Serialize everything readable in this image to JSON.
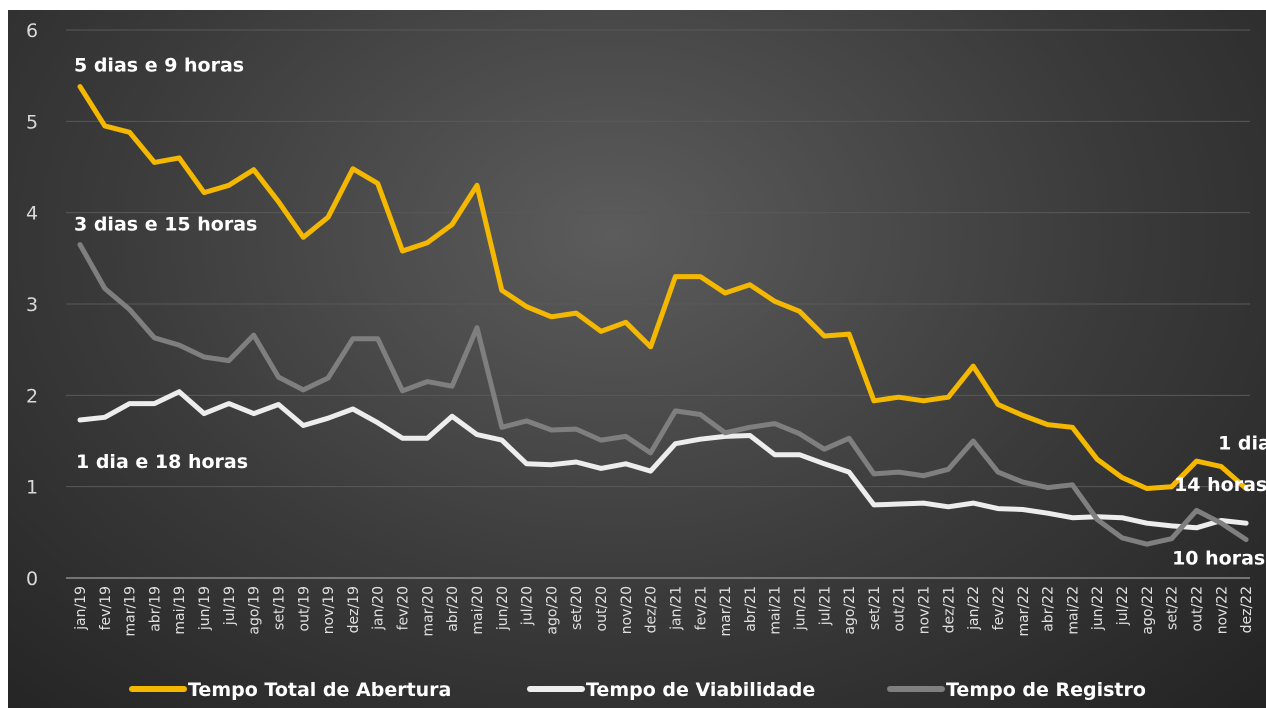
{
  "chart_data": {
    "type": "line",
    "title": "",
    "xlabel": "",
    "ylabel": "",
    "ylim": [
      0,
      6
    ],
    "yticks": [
      0,
      1,
      2,
      3,
      4,
      5,
      6
    ],
    "grid": true,
    "legend_position": "bottom",
    "categories": [
      "jan/19",
      "fev/19",
      "mar/19",
      "abr/19",
      "mai/19",
      "jun/19",
      "jul/19",
      "ago/19",
      "set/19",
      "out/19",
      "nov/19",
      "dez/19",
      "jan/20",
      "fev/20",
      "mar/20",
      "abr/20",
      "mai/20",
      "jun/20",
      "jul/20",
      "ago/20",
      "set/20",
      "out/20",
      "nov/20",
      "dez/20",
      "jan/21",
      "fev/21",
      "mar/21",
      "abr/21",
      "mai/21",
      "jun/21",
      "jul/21",
      "ago/21",
      "set/21",
      "out/21",
      "nov/21",
      "dez/21",
      "jan/22",
      "fev/22",
      "mar/22",
      "abr/22",
      "mai/22",
      "jun/22",
      "jul/22",
      "ago/22",
      "set/22",
      "out/22",
      "nov/22",
      "dez/22"
    ],
    "series": [
      {
        "name": "Tempo Total de Abertura",
        "color": "#f5b800",
        "values": [
          5.38,
          4.95,
          4.88,
          4.55,
          4.6,
          4.22,
          4.3,
          4.47,
          4.12,
          3.73,
          3.95,
          4.48,
          4.32,
          3.58,
          3.67,
          3.87,
          4.3,
          3.15,
          2.97,
          2.86,
          2.9,
          2.7,
          2.8,
          2.53,
          3.3,
          3.3,
          3.12,
          3.21,
          3.03,
          2.92,
          2.65,
          2.67,
          1.94,
          1.98,
          1.94,
          1.98,
          2.32,
          1.9,
          1.78,
          1.68,
          1.65,
          1.3,
          1.1,
          0.98,
          1.0,
          1.28,
          1.22,
          0.98
        ]
      },
      {
        "name": "Tempo de Viabilidade",
        "color": "#ededed",
        "values": [
          1.73,
          1.76,
          1.91,
          1.91,
          2.04,
          1.8,
          1.91,
          1.8,
          1.9,
          1.67,
          1.75,
          1.85,
          1.7,
          1.53,
          1.53,
          1.77,
          1.57,
          1.51,
          1.25,
          1.24,
          1.27,
          1.2,
          1.25,
          1.17,
          1.47,
          1.52,
          1.55,
          1.56,
          1.35,
          1.35,
          1.25,
          1.16,
          0.8,
          0.81,
          0.82,
          0.78,
          0.82,
          0.76,
          0.75,
          0.71,
          0.66,
          0.67,
          0.66,
          0.6,
          0.57,
          0.55,
          0.63,
          0.6
        ]
      },
      {
        "name": "Tempo de Registro",
        "color": "#7f7f7f",
        "values": [
          3.65,
          3.17,
          2.94,
          2.63,
          2.55,
          2.42,
          2.38,
          2.66,
          2.2,
          2.06,
          2.19,
          2.62,
          2.62,
          2.05,
          2.15,
          2.1,
          2.74,
          1.65,
          1.72,
          1.62,
          1.63,
          1.51,
          1.55,
          1.37,
          1.83,
          1.79,
          1.59,
          1.65,
          1.69,
          1.58,
          1.41,
          1.53,
          1.14,
          1.16,
          1.12,
          1.19,
          1.5,
          1.16,
          1.05,
          0.99,
          1.02,
          0.64,
          0.44,
          0.37,
          0.43,
          0.74,
          0.6,
          0.42
        ]
      }
    ],
    "annotations": [
      {
        "text": "5 dias e 9 horas",
        "series": 0,
        "index": 0
      },
      {
        "text": "3 dias e 15 horas",
        "series": 2,
        "index": 0
      },
      {
        "text": "1 dia e 18 horas",
        "series": 1,
        "index": 0
      },
      {
        "text": "1 dia",
        "series": 0,
        "index": 47
      },
      {
        "text": "14 horas",
        "series": 1,
        "index": 47
      },
      {
        "text": "10 horas",
        "series": 2,
        "index": 47
      }
    ]
  }
}
